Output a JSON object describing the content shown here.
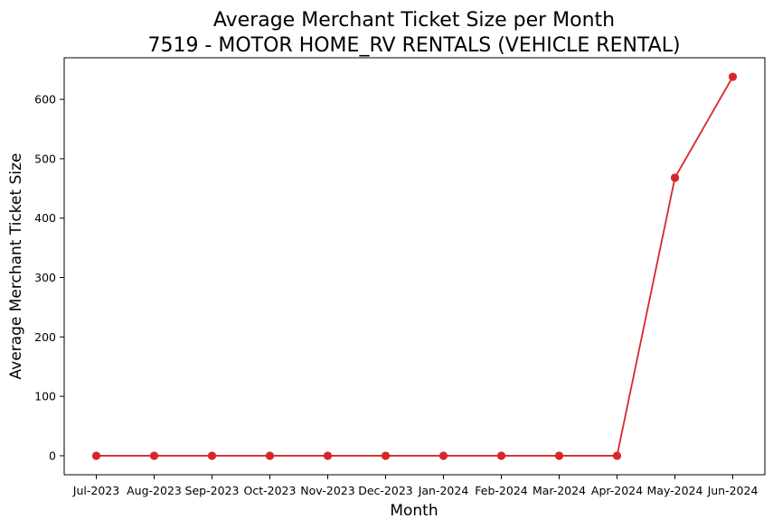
{
  "chart_data": {
    "type": "line",
    "title": "Average Merchant Ticket Size per Month",
    "subtitle": "7519 - MOTOR HOME_RV RENTALS (VEHICLE RENTAL)",
    "xlabel": "Month",
    "ylabel": "Average Merchant Ticket Size",
    "categories": [
      "Jul-2023",
      "Aug-2023",
      "Sep-2023",
      "Oct-2023",
      "Nov-2023",
      "Dec-2023",
      "Jan-2024",
      "Feb-2024",
      "Mar-2024",
      "Apr-2024",
      "May-2024",
      "Jun-2024"
    ],
    "series": [
      {
        "color": "#d62728",
        "values": [
          0,
          0,
          0,
          0,
          0,
          0,
          0,
          0,
          0,
          0,
          468,
          638
        ]
      }
    ],
    "yticks": [
      0,
      100,
      200,
      300,
      400,
      500,
      600
    ],
    "ylim": [
      -32,
      670
    ],
    "grid": false,
    "legend": "none"
  }
}
